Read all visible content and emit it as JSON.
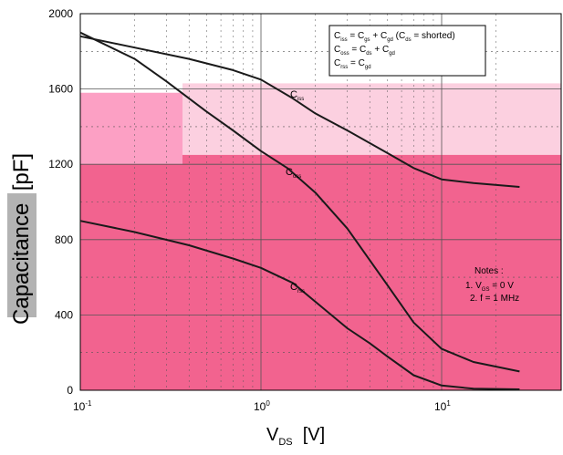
{
  "chart_data": {
    "type": "line",
    "x_scale": "log",
    "xlim": [
      0.1,
      27
    ],
    "ylim": [
      0,
      2000
    ],
    "y_ticks": [
      0,
      400,
      800,
      1200,
      1600,
      2000
    ],
    "y_tick_labels": [
      "0",
      "400",
      "800",
      "1200",
      "1600",
      "2000"
    ],
    "x_tick_labels": [
      {
        "base": "10",
        "exp": "-1"
      },
      {
        "base": "10",
        "exp": "0"
      },
      {
        "base": "10",
        "exp": "1"
      }
    ],
    "ylabel": {
      "text": "Capacitance",
      "unit": "[pF]"
    },
    "xlabel": {
      "main": "V",
      "sub": "DS",
      "unit": "[V]"
    },
    "grid": true,
    "series": [
      {
        "name": "Ciss",
        "label_main": "C",
        "label_sub": "iss",
        "x": [
          0.1,
          0.2,
          0.4,
          0.7,
          1.0,
          1.5,
          2,
          3,
          5,
          7,
          10,
          15,
          27
        ],
        "y": [
          1880,
          1820,
          1760,
          1700,
          1650,
          1550,
          1470,
          1380,
          1260,
          1180,
          1120,
          1100,
          1080
        ]
      },
      {
        "name": "Coss",
        "label_main": "C",
        "label_sub": "oss",
        "x": [
          0.1,
          0.2,
          0.3,
          0.5,
          0.7,
          1.0,
          1.4,
          2,
          3,
          5,
          7,
          10,
          15,
          27
        ],
        "y": [
          1900,
          1760,
          1640,
          1480,
          1380,
          1270,
          1180,
          1050,
          860,
          560,
          360,
          220,
          150,
          100
        ]
      },
      {
        "name": "Crss",
        "label_main": "C",
        "label_sub": "rss",
        "x": [
          0.1,
          0.2,
          0.4,
          0.7,
          1.0,
          1.5,
          2,
          3,
          4,
          5,
          7,
          10,
          15,
          27
        ],
        "y": [
          900,
          840,
          770,
          700,
          650,
          570,
          470,
          330,
          250,
          180,
          80,
          25,
          8,
          5
        ]
      }
    ],
    "formulas": [
      {
        "parts": [
          [
            "C",
            "iss"
          ],
          " = ",
          [
            "C",
            "gs"
          ],
          " + ",
          [
            "C",
            "gd"
          ],
          " (",
          [
            "C",
            "ds"
          ],
          " = shorted)"
        ]
      },
      {
        "parts": [
          [
            "C",
            "oss"
          ],
          " = ",
          [
            "C",
            "ds"
          ],
          " + ",
          [
            "C",
            "gd"
          ]
        ]
      },
      {
        "parts": [
          [
            "C",
            "rss"
          ],
          " = ",
          [
            "C",
            "gd"
          ]
        ]
      }
    ],
    "notes": {
      "title": "Notes :",
      "item1_prefix": "1. V",
      "item1_sub": "GS",
      "item1_suffix": " = 0 V",
      "item2": "2. f = 1 MHz"
    },
    "colors": {
      "hot": "#f2638f",
      "pink": "#fca0c4",
      "pale": "#fcd0e0",
      "curve": "#1a1a1a"
    }
  }
}
